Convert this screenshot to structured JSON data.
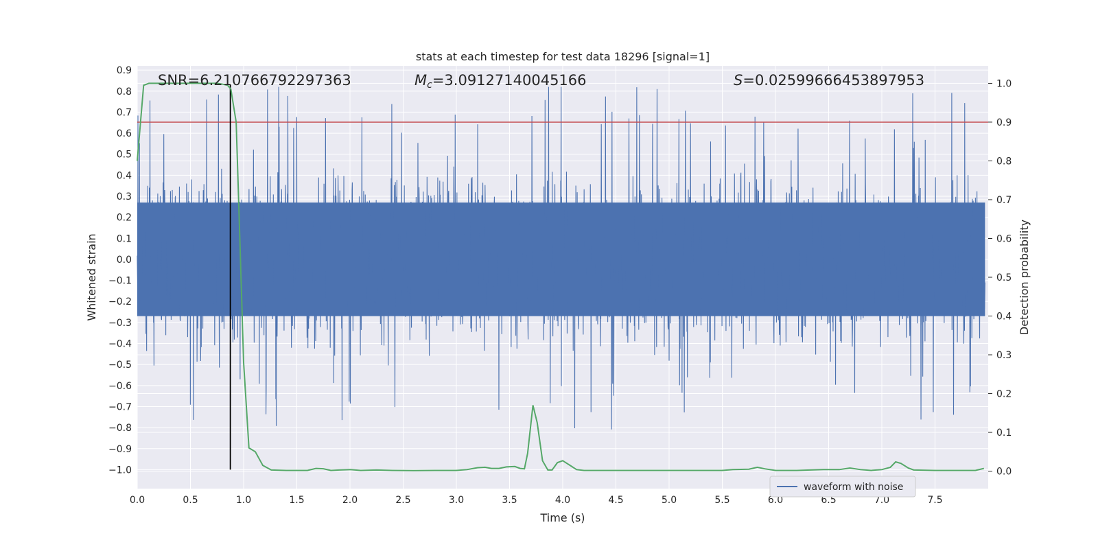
{
  "chart_data": {
    "type": "line",
    "title": "stats at each timestep for test data 18296 [signal=1]",
    "xlabel": "Time (s)",
    "ylabel": "Whitened strain",
    "y2label": "Detection probability",
    "xlim": [
      0.0,
      8.0
    ],
    "ylim": [
      -1.09,
      0.92
    ],
    "y2lim": [
      -0.045,
      1.045
    ],
    "x_ticks": [
      "0.0",
      "0.5",
      "1.0",
      "1.5",
      "2.0",
      "2.5",
      "3.0",
      "3.5",
      "4.0",
      "4.5",
      "5.0",
      "5.5",
      "6.0",
      "6.5",
      "7.0",
      "7.5"
    ],
    "y_ticks": [
      "0.9",
      "0.8",
      "0.7",
      "0.6",
      "0.5",
      "0.4",
      "0.3",
      "0.2",
      "0.1",
      "0.0",
      "-0.1",
      "-0.2",
      "-0.3",
      "-0.4",
      "-0.5",
      "-0.6",
      "-0.7",
      "-0.8",
      "-0.9",
      "-1.0"
    ],
    "y2_ticks": [
      "1.0",
      "0.9",
      "0.8",
      "0.7",
      "0.6",
      "0.5",
      "0.4",
      "0.3",
      "0.2",
      "0.1",
      "0.0"
    ],
    "grid": true,
    "legend": {
      "placement": "lower-right",
      "entries": [
        "waveform with noise"
      ]
    },
    "annotations": {
      "snr": "SNR=6.210766792297363",
      "mc_symbol": "M",
      "mc_sub": "c",
      "mc_value": "=3.09127140045166",
      "s_symbol": "S",
      "s_value": "=0.02599666453897953"
    },
    "threshold": {
      "value": 0.9,
      "axis": "y2",
      "color": "#c44e52"
    },
    "marker_line": {
      "x": 0.875,
      "color": "#000000"
    },
    "series": [
      {
        "name": "waveform with noise",
        "axis": "y",
        "color": "#4c72b0",
        "kind": "dense noise trace",
        "core_amplitude": 0.27,
        "typical_envelope": 0.48,
        "x_range": [
          0.0,
          7.97
        ]
      },
      {
        "axis": "y2",
        "color": "#55a868",
        "x": [
          0.0,
          0.06,
          0.11,
          0.2,
          0.4,
          0.6,
          0.75,
          0.8,
          0.85,
          0.88,
          0.93,
          0.97,
          1.0,
          1.05,
          1.11,
          1.18,
          1.26,
          1.4,
          1.6,
          1.68,
          1.75,
          1.82,
          1.9,
          2.0,
          2.1,
          2.25,
          2.4,
          2.6,
          2.8,
          3.0,
          3.1,
          3.2,
          3.27,
          3.33,
          3.4,
          3.47,
          3.55,
          3.6,
          3.64,
          3.67,
          3.72,
          3.76,
          3.81,
          3.86,
          3.9,
          3.95,
          4.0,
          4.08,
          4.13,
          4.2,
          4.4,
          4.6,
          4.8,
          5.0,
          5.3,
          5.5,
          5.6,
          5.75,
          5.83,
          5.9,
          6.0,
          6.2,
          6.45,
          6.6,
          6.7,
          6.8,
          6.9,
          7.0,
          7.08,
          7.13,
          7.18,
          7.25,
          7.3,
          7.5,
          7.7,
          7.88,
          7.96
        ],
        "y": [
          0.8,
          0.995,
          1.0,
          1.0,
          1.0,
          1.0,
          1.0,
          0.998,
          0.995,
          0.985,
          0.9,
          0.55,
          0.28,
          0.06,
          0.05,
          0.015,
          0.003,
          0.002,
          0.002,
          0.007,
          0.006,
          0.002,
          0.003,
          0.004,
          0.002,
          0.003,
          0.002,
          0.0015,
          0.002,
          0.002,
          0.004,
          0.009,
          0.01,
          0.007,
          0.007,
          0.011,
          0.012,
          0.007,
          0.006,
          0.046,
          0.17,
          0.125,
          0.027,
          0.003,
          0.003,
          0.022,
          0.027,
          0.013,
          0.004,
          0.002,
          0.002,
          0.002,
          0.002,
          0.002,
          0.002,
          0.002,
          0.004,
          0.005,
          0.01,
          0.006,
          0.002,
          0.002,
          0.004,
          0.004,
          0.008,
          0.004,
          0.002,
          0.004,
          0.01,
          0.024,
          0.02,
          0.008,
          0.003,
          0.002,
          0.002,
          0.002,
          0.007
        ]
      }
    ]
  }
}
